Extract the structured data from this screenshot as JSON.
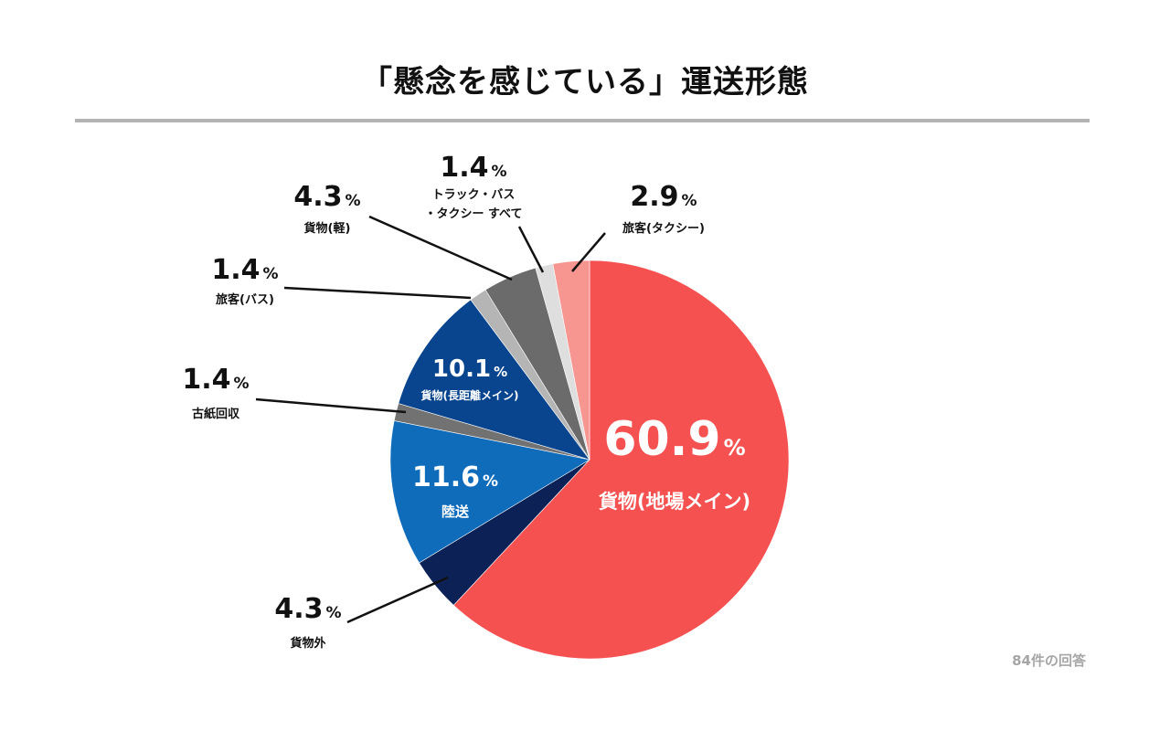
{
  "title": "「懸念を感じている」運送形態",
  "response_count": "84件の回答",
  "chart_data": {
    "type": "pie",
    "title": "「懸念を感じている」運送形態",
    "unit": "%",
    "slices": [
      {
        "label": "貨物(地場メイン)",
        "value": 60.9,
        "value_label": "60.9",
        "color": "#f65151"
      },
      {
        "label": "貨物外",
        "value": 4.3,
        "value_label": "4.3",
        "color": "#0c2256"
      },
      {
        "label": "陸送",
        "value": 11.6,
        "value_label": "11.6",
        "color": "#0f6cbb"
      },
      {
        "label": "古紙回収",
        "value": 1.4,
        "value_label": "1.4",
        "color": "#727272"
      },
      {
        "label": "貨物(長距離メイン)",
        "value": 10.1,
        "value_label": "10.1",
        "color": "#08458e"
      },
      {
        "label": "旅客(バス)",
        "value": 1.4,
        "value_label": "1.4",
        "color": "#b5b5b5"
      },
      {
        "label": "貨物(軽)",
        "value": 4.3,
        "value_label": "4.3",
        "color": "#6b6b6b"
      },
      {
        "label": "トラック・バス・タクシー すべて",
        "value": 1.4,
        "value_label": "1.4",
        "color": "#dedede"
      },
      {
        "label": "旅客(タクシー)",
        "value": 2.9,
        "value_label": "2.9",
        "color": "#f79590"
      }
    ],
    "start_angle": "12 o'clock",
    "direction": "clockwise",
    "legend": "none (labels on and beside slices)"
  }
}
